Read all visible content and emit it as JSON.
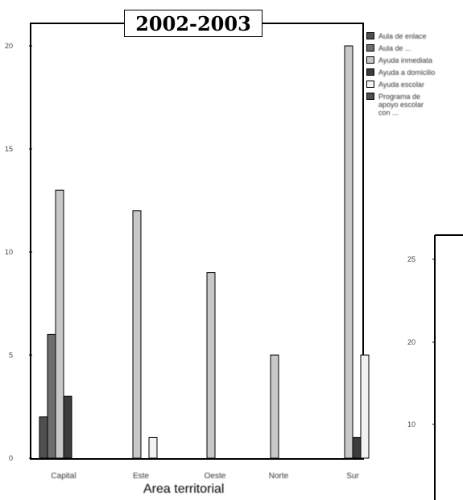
{
  "title": "2002-2003",
  "chart_data": [
    {
      "type": "bar",
      "title": "2002-2003",
      "xlabel": "Area territorial",
      "ylabel": "",
      "categories": [
        "Capital",
        "Este",
        "Oeste",
        "Norte",
        "Sur"
      ],
      "yticks": [
        0,
        5,
        10,
        15,
        20
      ],
      "ylim": [
        0,
        22
      ],
      "grid": false,
      "legend_position": "right",
      "series": [
        {
          "name": "Aula de enlace",
          "color": "#505050",
          "values": [
            2,
            0,
            0,
            0,
            0
          ]
        },
        {
          "name": "Aula de ...",
          "color": "#6e6e6e",
          "values": [
            6,
            0,
            0,
            0,
            0
          ]
        },
        {
          "name": "Ayuda inmediata",
          "color": "#c8c8c8",
          "values": [
            13,
            12,
            9,
            5,
            20
          ]
        },
        {
          "name": "Ayuda a domicilio",
          "color": "#3c3c3c",
          "values": [
            3,
            0,
            0,
            0,
            1
          ]
        },
        {
          "name": "Ayuda escolar",
          "color": "#f2f2f2",
          "values": [
            0,
            1,
            0,
            0,
            5
          ]
        },
        {
          "name": "Programa de\napoyo escolar\ncon ...",
          "color": "#505050",
          "values": [
            0,
            0,
            0,
            0,
            0
          ]
        }
      ]
    },
    {
      "type": "bar",
      "partial": true,
      "yticks": [
        10,
        20,
        25
      ],
      "series": []
    }
  ]
}
